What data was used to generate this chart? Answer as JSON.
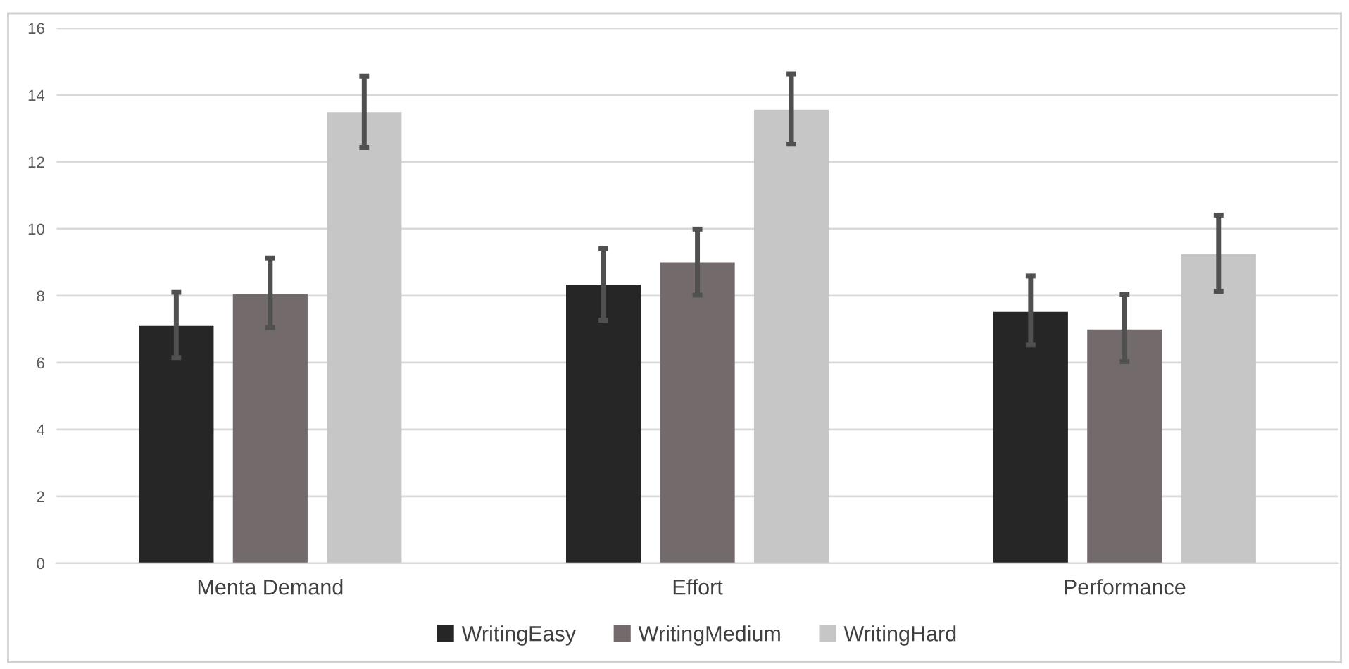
{
  "chart_data": {
    "type": "bar",
    "categories": [
      "Menta Demand",
      "Effort",
      "Performance"
    ],
    "series": [
      {
        "name": "WritingEasy",
        "color": "#262626",
        "values": [
          7.1,
          8.33,
          7.52
        ],
        "errors": [
          [
            6.15,
            8.1
          ],
          [
            7.27,
            9.4
          ],
          [
            6.53,
            8.59
          ]
        ]
      },
      {
        "name": "WritingMedium",
        "color": "#736b6b",
        "values": [
          8.05,
          9.0,
          6.99
        ],
        "errors": [
          [
            7.05,
            9.13
          ],
          [
            8.02,
            9.99
          ],
          [
            6.03,
            8.03
          ]
        ]
      },
      {
        "name": "WritingHard",
        "color": "#c6c6c6",
        "values": [
          13.49,
          13.56,
          9.24
        ],
        "errors": [
          [
            12.43,
            14.56
          ],
          [
            12.53,
            14.63
          ],
          [
            8.13,
            10.41
          ]
        ]
      }
    ],
    "ylim": [
      0,
      16
    ],
    "yticks": [
      0,
      2,
      4,
      6,
      8,
      10,
      12,
      14,
      16
    ],
    "grid": "y",
    "legend": "bottom"
  }
}
